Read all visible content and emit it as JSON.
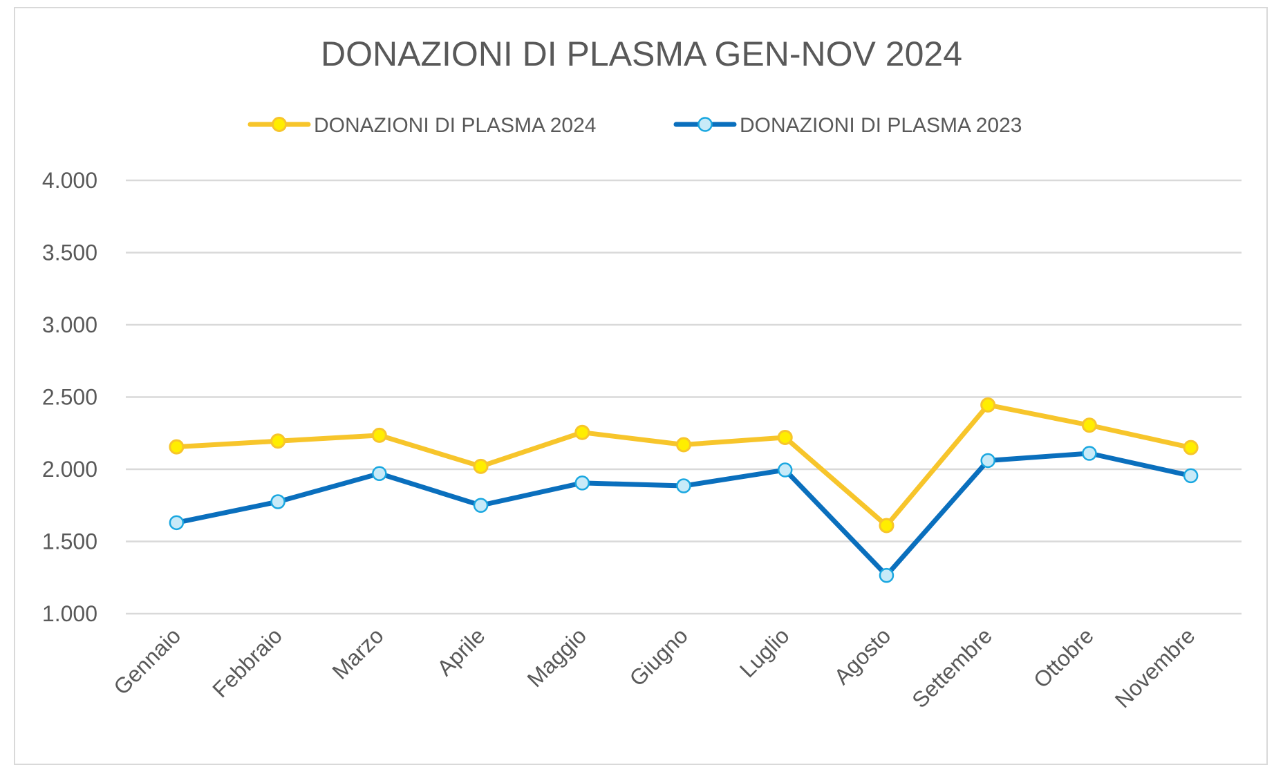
{
  "chart_data": {
    "type": "line",
    "title": "DONAZIONI DI PLASMA GEN-NOV 2024",
    "xlabel": "",
    "ylabel": "",
    "categories": [
      "Gennaio",
      "Febbraio",
      "Marzo",
      "Aprile",
      "Maggio",
      "Giugno",
      "Luglio",
      "Agosto",
      "Settembre",
      "Ottobre",
      "Novembre"
    ],
    "ylim": [
      1000,
      4000
    ],
    "yticks": [
      1000,
      1500,
      2000,
      2500,
      3000,
      3500,
      4000
    ],
    "ytick_labels": [
      "1.000",
      "1.500",
      "2.000",
      "2.500",
      "3.000",
      "3.500",
      "4.000"
    ],
    "grid": true,
    "legend_position": "top",
    "series": [
      {
        "name": "DONAZIONI DI PLASMA 2024",
        "color": "#f7c52b",
        "marker_fill": "#ffee00",
        "values": [
          2155,
          2195,
          2235,
          2020,
          2255,
          2170,
          2220,
          1610,
          2445,
          2305,
          2150
        ]
      },
      {
        "name": "DONAZIONI DI PLASMA 2023",
        "color": "#0a6fbd",
        "marker_fill": "#c8eaf8",
        "marker_stroke": "#1aa7e0",
        "values": [
          1630,
          1775,
          1970,
          1750,
          1905,
          1885,
          1995,
          1265,
          2060,
          2110,
          1955
        ]
      }
    ]
  }
}
